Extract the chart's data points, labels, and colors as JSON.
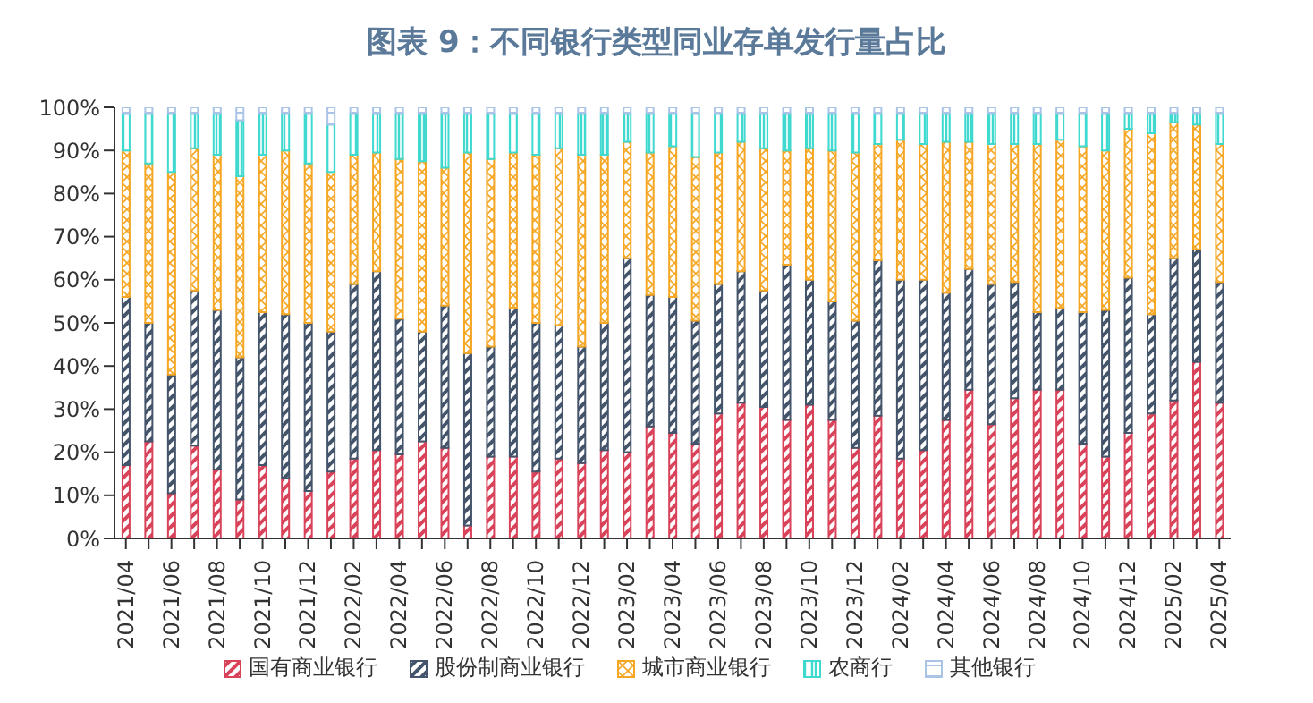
{
  "chart_data": {
    "type": "bar",
    "stacked": true,
    "title": "图表 9：不同银行类型同业存单发行量占比",
    "categories": [
      "2021/04",
      null,
      "2021/06",
      null,
      "2021/08",
      null,
      "2021/10",
      null,
      "2021/12",
      null,
      "2022/02",
      null,
      "2022/04",
      null,
      "2022/06",
      null,
      "2022/08",
      null,
      "2022/10",
      null,
      "2022/12",
      null,
      "2023/02",
      null,
      "2023/04",
      null,
      "2023/06",
      null,
      "2023/08",
      null,
      "2023/10",
      null,
      "2023/12",
      null,
      "2024/02",
      null,
      "2024/04",
      null,
      "2024/06",
      null,
      "2024/08",
      null,
      "2024/10",
      null,
      "2024/12",
      null,
      "2025/02",
      null,
      "2025/04"
    ],
    "series": [
      {
        "name": "国有商业银行",
        "color": "#d9435a",
        "values": [
          17,
          22.5,
          10.5,
          21.5,
          16,
          9,
          17,
          14,
          11,
          15.5,
          18.5,
          20.5,
          19.5,
          22.5,
          21,
          3,
          19,
          19,
          15.5,
          18.5,
          17.5,
          20.5,
          20,
          26,
          24.5,
          22,
          29,
          31.5,
          30.5,
          27.5,
          31,
          27.5,
          21,
          28.5,
          18.5,
          20.5,
          27.5,
          34.5,
          26.5,
          32.5,
          34.5,
          34.5,
          22,
          19,
          24.5,
          29,
          32,
          41,
          31.5
        ]
      },
      {
        "name": "股份制商业银行",
        "color": "#44546a",
        "values": [
          39,
          27.5,
          27.5,
          36,
          37,
          33,
          35.5,
          38,
          39,
          32.5,
          40.5,
          41.5,
          31.5,
          25.5,
          33,
          40,
          25.5,
          34.5,
          34.5,
          31,
          27,
          29.5,
          45,
          30.5,
          31.5,
          28.5,
          30,
          30.5,
          27,
          36,
          29,
          27.5,
          29.5,
          36,
          41.5,
          39.5,
          29.5,
          28,
          32.5,
          27,
          18,
          19,
          30.5,
          34,
          36,
          23,
          33,
          26,
          28
        ]
      },
      {
        "name": "城市商业银行",
        "color": "#f5a623",
        "values": [
          34,
          37,
          47,
          33,
          36,
          42,
          36.5,
          38,
          37,
          37,
          30,
          27.5,
          37,
          39.5,
          32,
          46.5,
          43.5,
          36,
          39,
          41,
          44.5,
          39,
          27,
          33,
          35,
          38,
          30.5,
          30,
          33,
          26.5,
          30.5,
          35,
          39,
          27,
          32.5,
          31.5,
          35,
          29.5,
          32.5,
          32,
          39,
          39,
          38.5,
          37,
          34.5,
          42,
          31.5,
          29,
          32
        ]
      },
      {
        "name": "农商行",
        "color": "#3fd9d0",
        "values": [
          8.5,
          11.5,
          13.5,
          8,
          9.5,
          13,
          9.5,
          8.5,
          11.5,
          11,
          9.5,
          9,
          10.5,
          11,
          12.5,
          9,
          10.5,
          9,
          9.5,
          8,
          9.5,
          9.5,
          6.5,
          9,
          7.5,
          10,
          9,
          6.5,
          8,
          8.5,
          8,
          8.5,
          9,
          7,
          6,
          7,
          6.5,
          6.5,
          7,
          7,
          7,
          6,
          7.5,
          8.5,
          3.5,
          4.5,
          2,
          2.5,
          7
        ]
      },
      {
        "name": "其他银行",
        "color": "#a9c4e6",
        "values": [
          1.5,
          1.5,
          1.5,
          1.5,
          1.5,
          3,
          1.5,
          1.5,
          1.5,
          4,
          1.5,
          1.5,
          1.5,
          1.5,
          1.5,
          1.5,
          1.5,
          1.5,
          1.5,
          1.5,
          1.5,
          1.5,
          1.5,
          1.5,
          1.5,
          1.5,
          1.5,
          1.5,
          1.5,
          1.5,
          1.5,
          1.5,
          1.5,
          1.5,
          1.5,
          1.5,
          1.5,
          1.5,
          1.5,
          1.5,
          1.5,
          1.5,
          1.5,
          1.5,
          1.5,
          1.5,
          1.5,
          1.5,
          1.5
        ]
      }
    ],
    "ylim": [
      0,
      100
    ],
    "yticks": [
      {
        "value": 0,
        "label": "0%"
      },
      {
        "value": 10,
        "label": "10%"
      },
      {
        "value": 20,
        "label": "20%"
      },
      {
        "value": 30,
        "label": "30%"
      },
      {
        "value": 40,
        "label": "40%"
      },
      {
        "value": 50,
        "label": "50%"
      },
      {
        "value": 60,
        "label": "60%"
      },
      {
        "value": 70,
        "label": "70%"
      },
      {
        "value": 80,
        "label": "80%"
      },
      {
        "value": 90,
        "label": "90%"
      },
      {
        "value": 100,
        "label": "100%"
      }
    ],
    "grid": false,
    "legend": "bottom"
  }
}
